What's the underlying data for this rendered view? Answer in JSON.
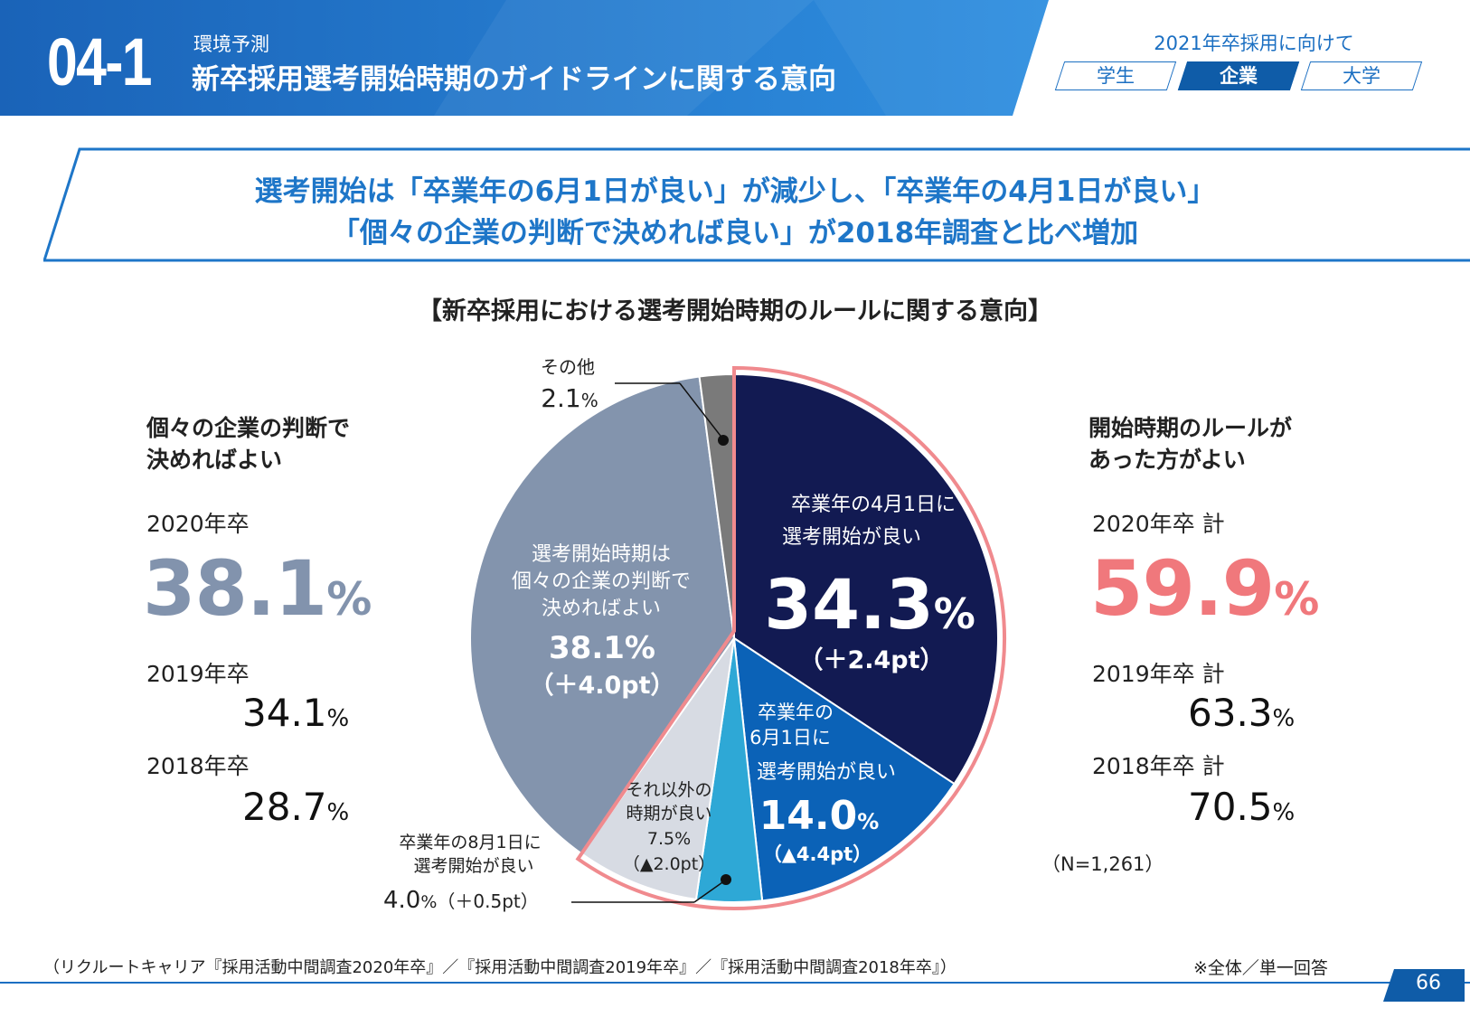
{
  "header": {
    "section_number": "04-1",
    "category": "環境予測",
    "title": "新卒採用選考開始時期のガイドラインに関する意向",
    "context_label": "2021年卒採用に向けて",
    "tabs": [
      {
        "label": "学生",
        "active": false
      },
      {
        "label": "企業",
        "active": true
      },
      {
        "label": "大学",
        "active": false
      }
    ]
  },
  "headline": {
    "line1": "選考開始は「卒業年の6月1日が良い」が減少し、「卒業年の4月1日が良い」",
    "line2": "「個々の企業の判断で決めれば良い」が2018年調査と比べ増加"
  },
  "chart_title": "【新卒採用における選考開始時期のルールに関する意向】",
  "left_summary": {
    "heading_line1": "個々の企業の判断で",
    "heading_line2": "決めればよい",
    "rows": [
      {
        "year": "2020年卒",
        "value": "38.1",
        "unit": "%"
      },
      {
        "year": "2019年卒",
        "value": "34.1",
        "unit": "%"
      },
      {
        "year": "2018年卒",
        "value": "28.7",
        "unit": "%"
      }
    ]
  },
  "right_summary": {
    "heading_line1": "開始時期のルールが",
    "heading_line2": "あった方がよい",
    "rows": [
      {
        "year": "2020年卒 計",
        "value": "59.9",
        "unit": "%"
      },
      {
        "year": "2019年卒 計",
        "value": "63.3",
        "unit": "%"
      },
      {
        "year": "2018年卒 計",
        "value": "70.5",
        "unit": "%"
      }
    ]
  },
  "sample_size": "（N=1,261）",
  "colors": {
    "accent_blue": "#1b6fc2",
    "headline_blue": "#1e76c8",
    "left_value": "#8293ad",
    "right_value": "#f0787c",
    "rule_highlight": "#f08a8e"
  },
  "chart_data": {
    "type": "pie",
    "title": "【新卒採用における選考開始時期のルールに関する意向】",
    "start": "12 o'clock, clockwise",
    "slices": [
      {
        "name": "卒業年の4月1日に選考開始が良い",
        "label_line1": "卒業年の4月1日に",
        "label_line2": "選考開始が良い",
        "value": 34.3,
        "value_text": "34.3",
        "change": "（＋2.4pt）",
        "color": "#121a52",
        "in_rule_group": true
      },
      {
        "name": "卒業年の6月1日に選考開始が良い",
        "label_line1": "卒業年の",
        "label_line2": "6月1日に",
        "label_line3": "選考開始が良い",
        "value": 14.0,
        "value_text": "14.0",
        "change": "（▲4.4pt）",
        "color": "#0b62b7",
        "in_rule_group": true
      },
      {
        "name": "卒業年の8月1日に選考開始が良い",
        "label_line1": "卒業年の8月1日に",
        "label_line2": "選考開始が良い",
        "value": 4.0,
        "value_text": "4.0",
        "change": "（＋0.5pt）",
        "color": "#2ea8d6",
        "in_rule_group": true
      },
      {
        "name": "それ以外の時期が良い",
        "label_line1": "それ以外の",
        "label_line2": "時期が良い",
        "value": 7.5,
        "value_text": "7.5%",
        "change": "（▲2.0pt）",
        "color": "#d7dbe3",
        "in_rule_group": true
      },
      {
        "name": "選考開始時期は個々の企業の判断で決めればよい",
        "label_line1": "選考開始時期は",
        "label_line2": "個々の企業の判断で",
        "label_line3": "決めればよい",
        "value": 38.1,
        "value_text": "38.1%",
        "change": "（＋4.0pt）",
        "color": "#8394ad",
        "in_rule_group": false
      },
      {
        "name": "その他",
        "label_line1": "その他",
        "value": 2.1,
        "value_text": "2.1",
        "color": "#7a7a7a",
        "in_rule_group": false
      }
    ],
    "unit": "%"
  },
  "footer": {
    "source": "（リクルートキャリア『採用活動中間調査2020年卒』／『採用活動中間調査2019年卒』／『採用活動中間調査2018年卒』）",
    "answer_note": "※全体／単一回答",
    "page_number": "66"
  }
}
